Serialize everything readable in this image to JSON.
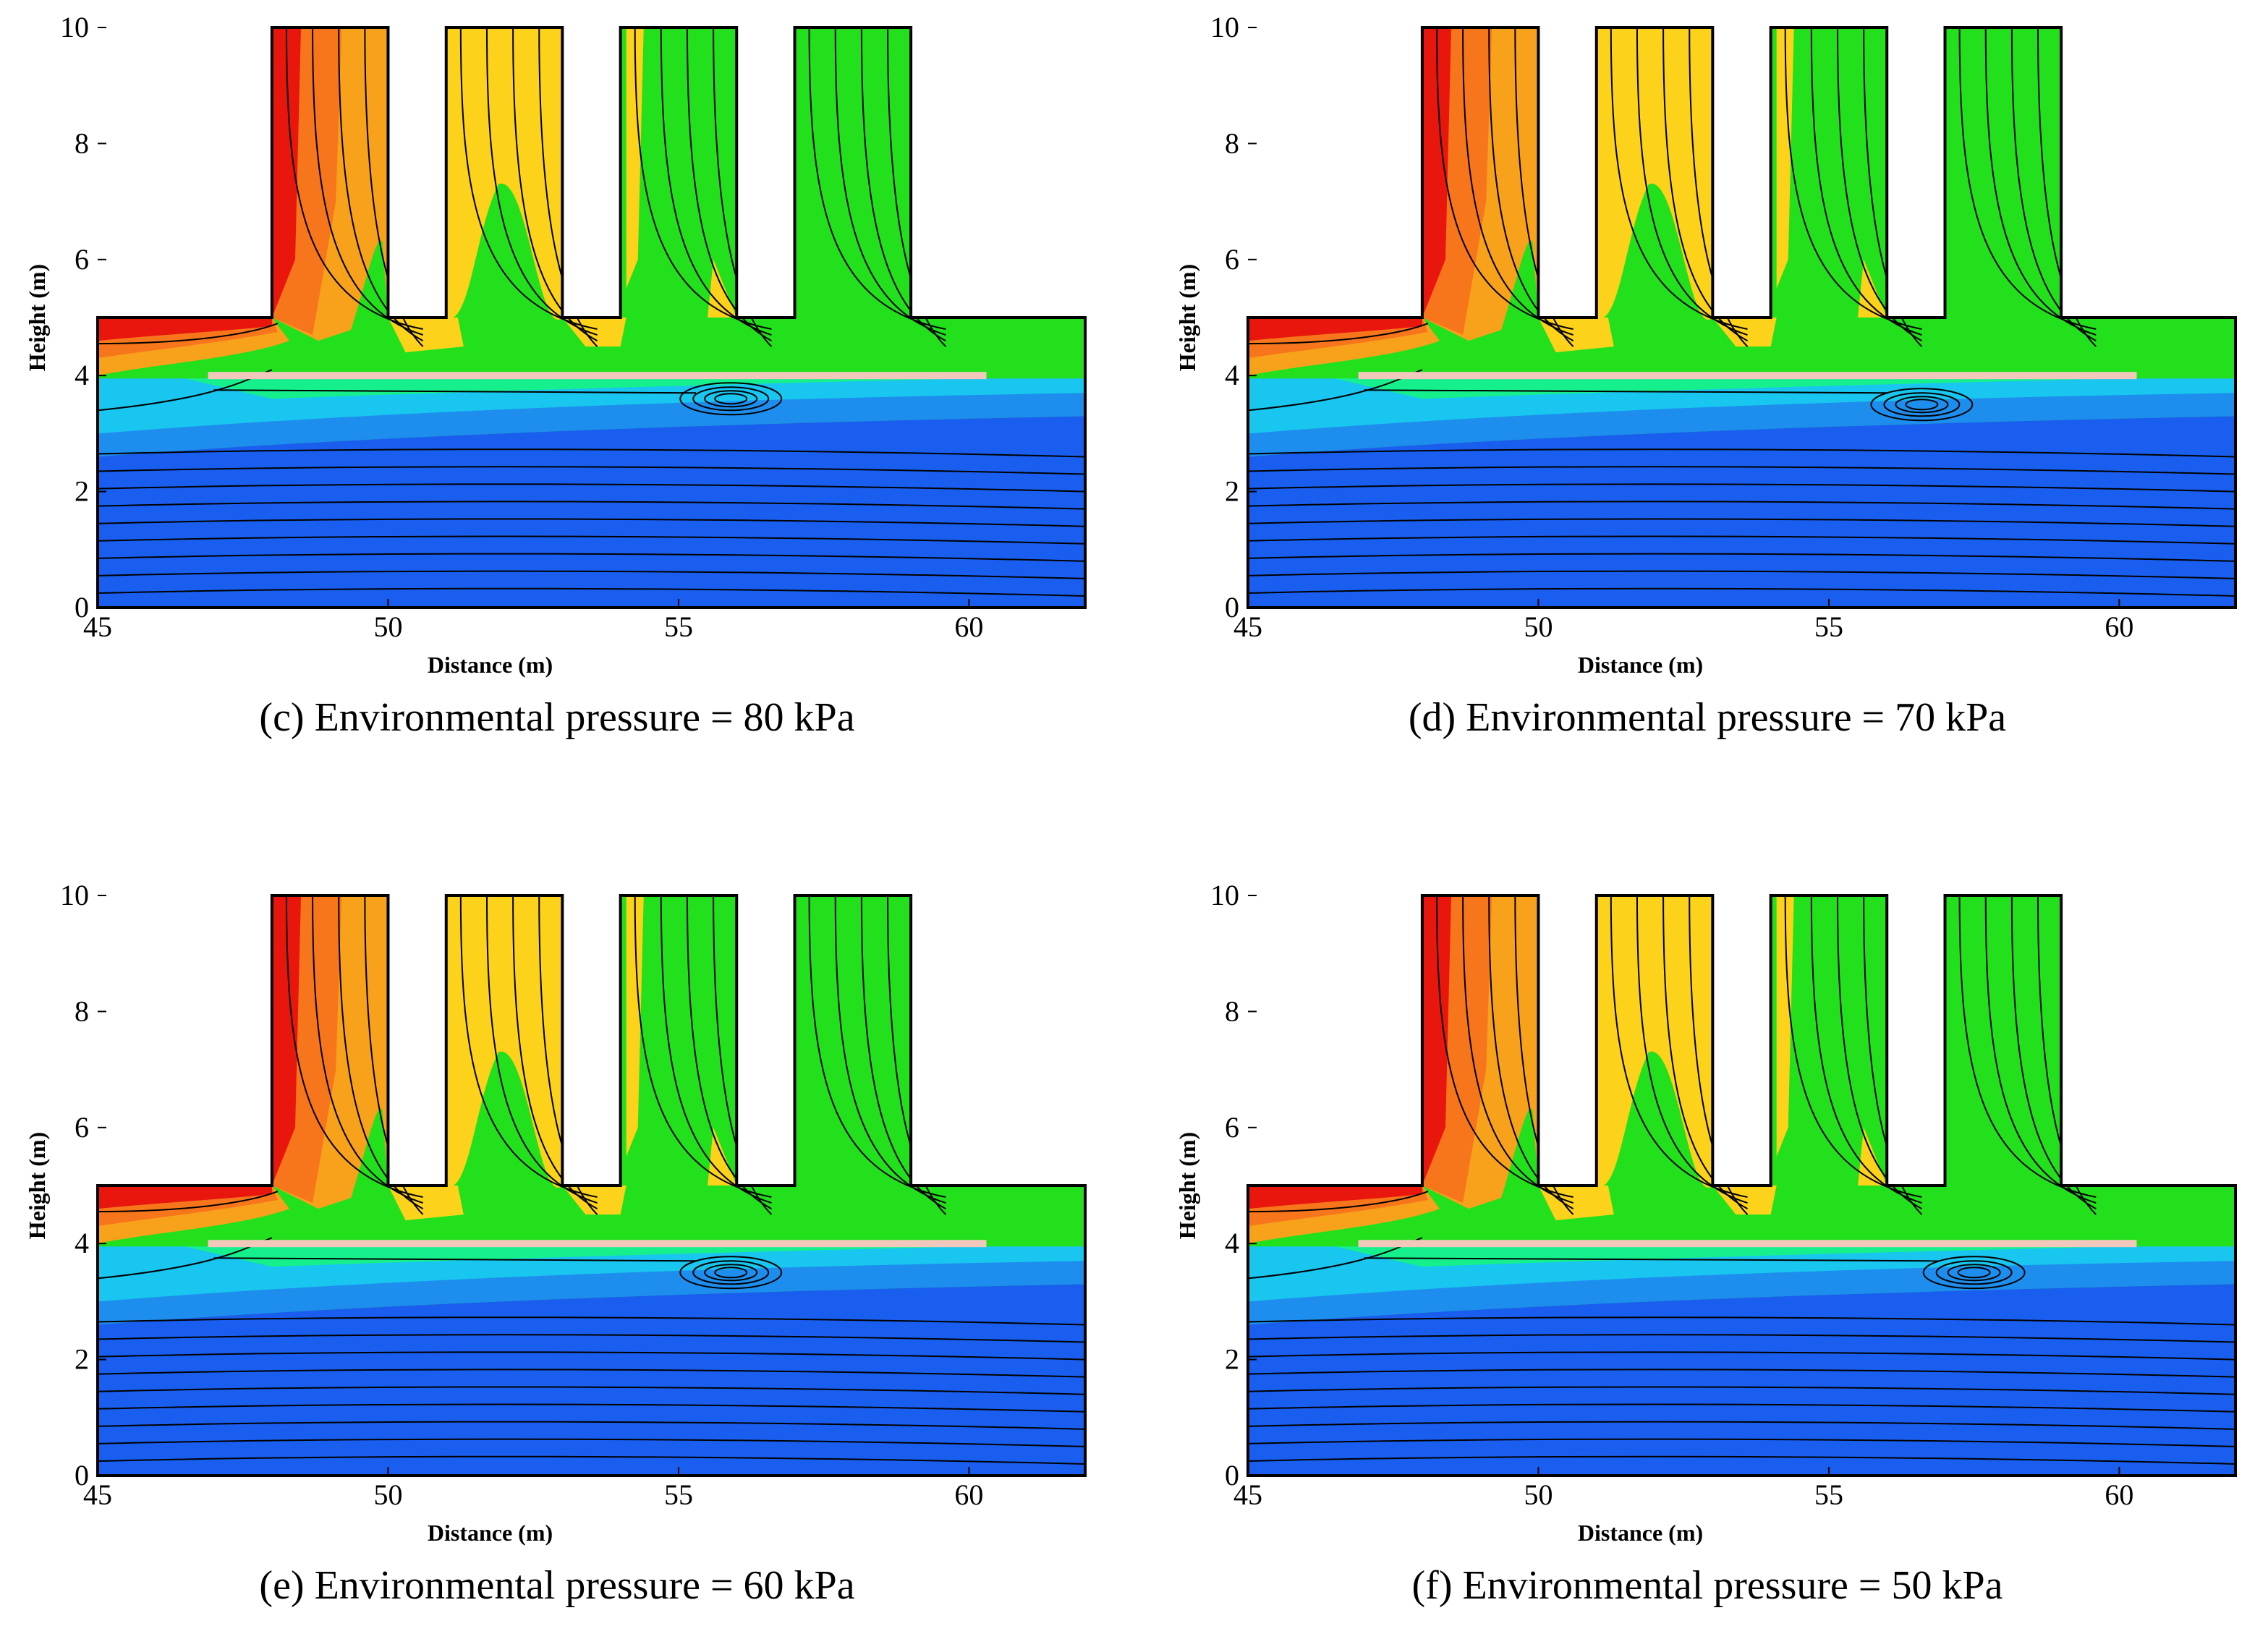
{
  "chart_data": [
    {
      "type": "contour",
      "panel": "c",
      "caption": "(c) Environmental pressure = 80 kPa",
      "xlabel": "Distance (m)",
      "ylabel": "Height (m)",
      "xlim": [
        45,
        62
      ],
      "ylim": [
        0,
        10
      ],
      "xticks": [
        "45",
        "50",
        "55",
        "60"
      ],
      "yticks": [
        "0",
        "2",
        "4",
        "6",
        "8",
        "10"
      ],
      "vortex_center": [
        55.9,
        3.6
      ],
      "shafts": [
        [
          48,
          50
        ],
        [
          51,
          53
        ],
        [
          54,
          56
        ],
        [
          57,
          59
        ]
      ]
    },
    {
      "type": "contour",
      "panel": "d",
      "caption": "(d) Environmental pressure = 70 kPa",
      "xlabel": "Distance (m)",
      "ylabel": "Height (m)",
      "xlim": [
        45,
        62
      ],
      "ylim": [
        0,
        10
      ],
      "xticks": [
        "45",
        "50",
        "55",
        "60"
      ],
      "yticks": [
        "0",
        "2",
        "4",
        "6",
        "8",
        "10"
      ],
      "vortex_center": [
        56.6,
        3.5
      ],
      "shafts": [
        [
          48,
          50
        ],
        [
          51,
          53
        ],
        [
          54,
          56
        ],
        [
          57,
          59
        ]
      ]
    },
    {
      "type": "contour",
      "panel": "e",
      "caption": "(e) Environmental pressure = 60 kPa",
      "xlabel": "Distance (m)",
      "ylabel": "Height (m)",
      "xlim": [
        45,
        62
      ],
      "ylim": [
        0,
        10
      ],
      "xticks": [
        "45",
        "50",
        "55",
        "60"
      ],
      "yticks": [
        "0",
        "2",
        "4",
        "6",
        "8",
        "10"
      ],
      "vortex_center": [
        55.9,
        3.5
      ],
      "shafts": [
        [
          48,
          50
        ],
        [
          51,
          53
        ],
        [
          54,
          56
        ],
        [
          57,
          59
        ]
      ]
    },
    {
      "type": "contour",
      "panel": "f",
      "caption": "(f) Environmental pressure = 50 kPa",
      "xlabel": "Distance (m)",
      "ylabel": "Height (m)",
      "xlim": [
        45,
        62
      ],
      "ylim": [
        0,
        10
      ],
      "xticks": [
        "45",
        "50",
        "55",
        "60"
      ],
      "yticks": [
        "0",
        "2",
        "4",
        "6",
        "8",
        "10"
      ],
      "vortex_center": [
        57.5,
        3.5
      ],
      "shafts": [
        [
          48,
          50
        ],
        [
          51,
          53
        ],
        [
          54,
          56
        ],
        [
          57,
          59
        ]
      ]
    }
  ],
  "colors": {
    "red": "#e8160c",
    "orange": "#f7761c",
    "amber": "#f8a11b",
    "yellow": "#fcd21a",
    "green": "#23e01c",
    "teal": "#16f08c",
    "cyan": "#18c6ef",
    "lightblue": "#1d8eee",
    "blue": "#1a5ef0",
    "rail": "#f2c7bc",
    "streamline": "#000000",
    "vector": "#ff4040"
  }
}
